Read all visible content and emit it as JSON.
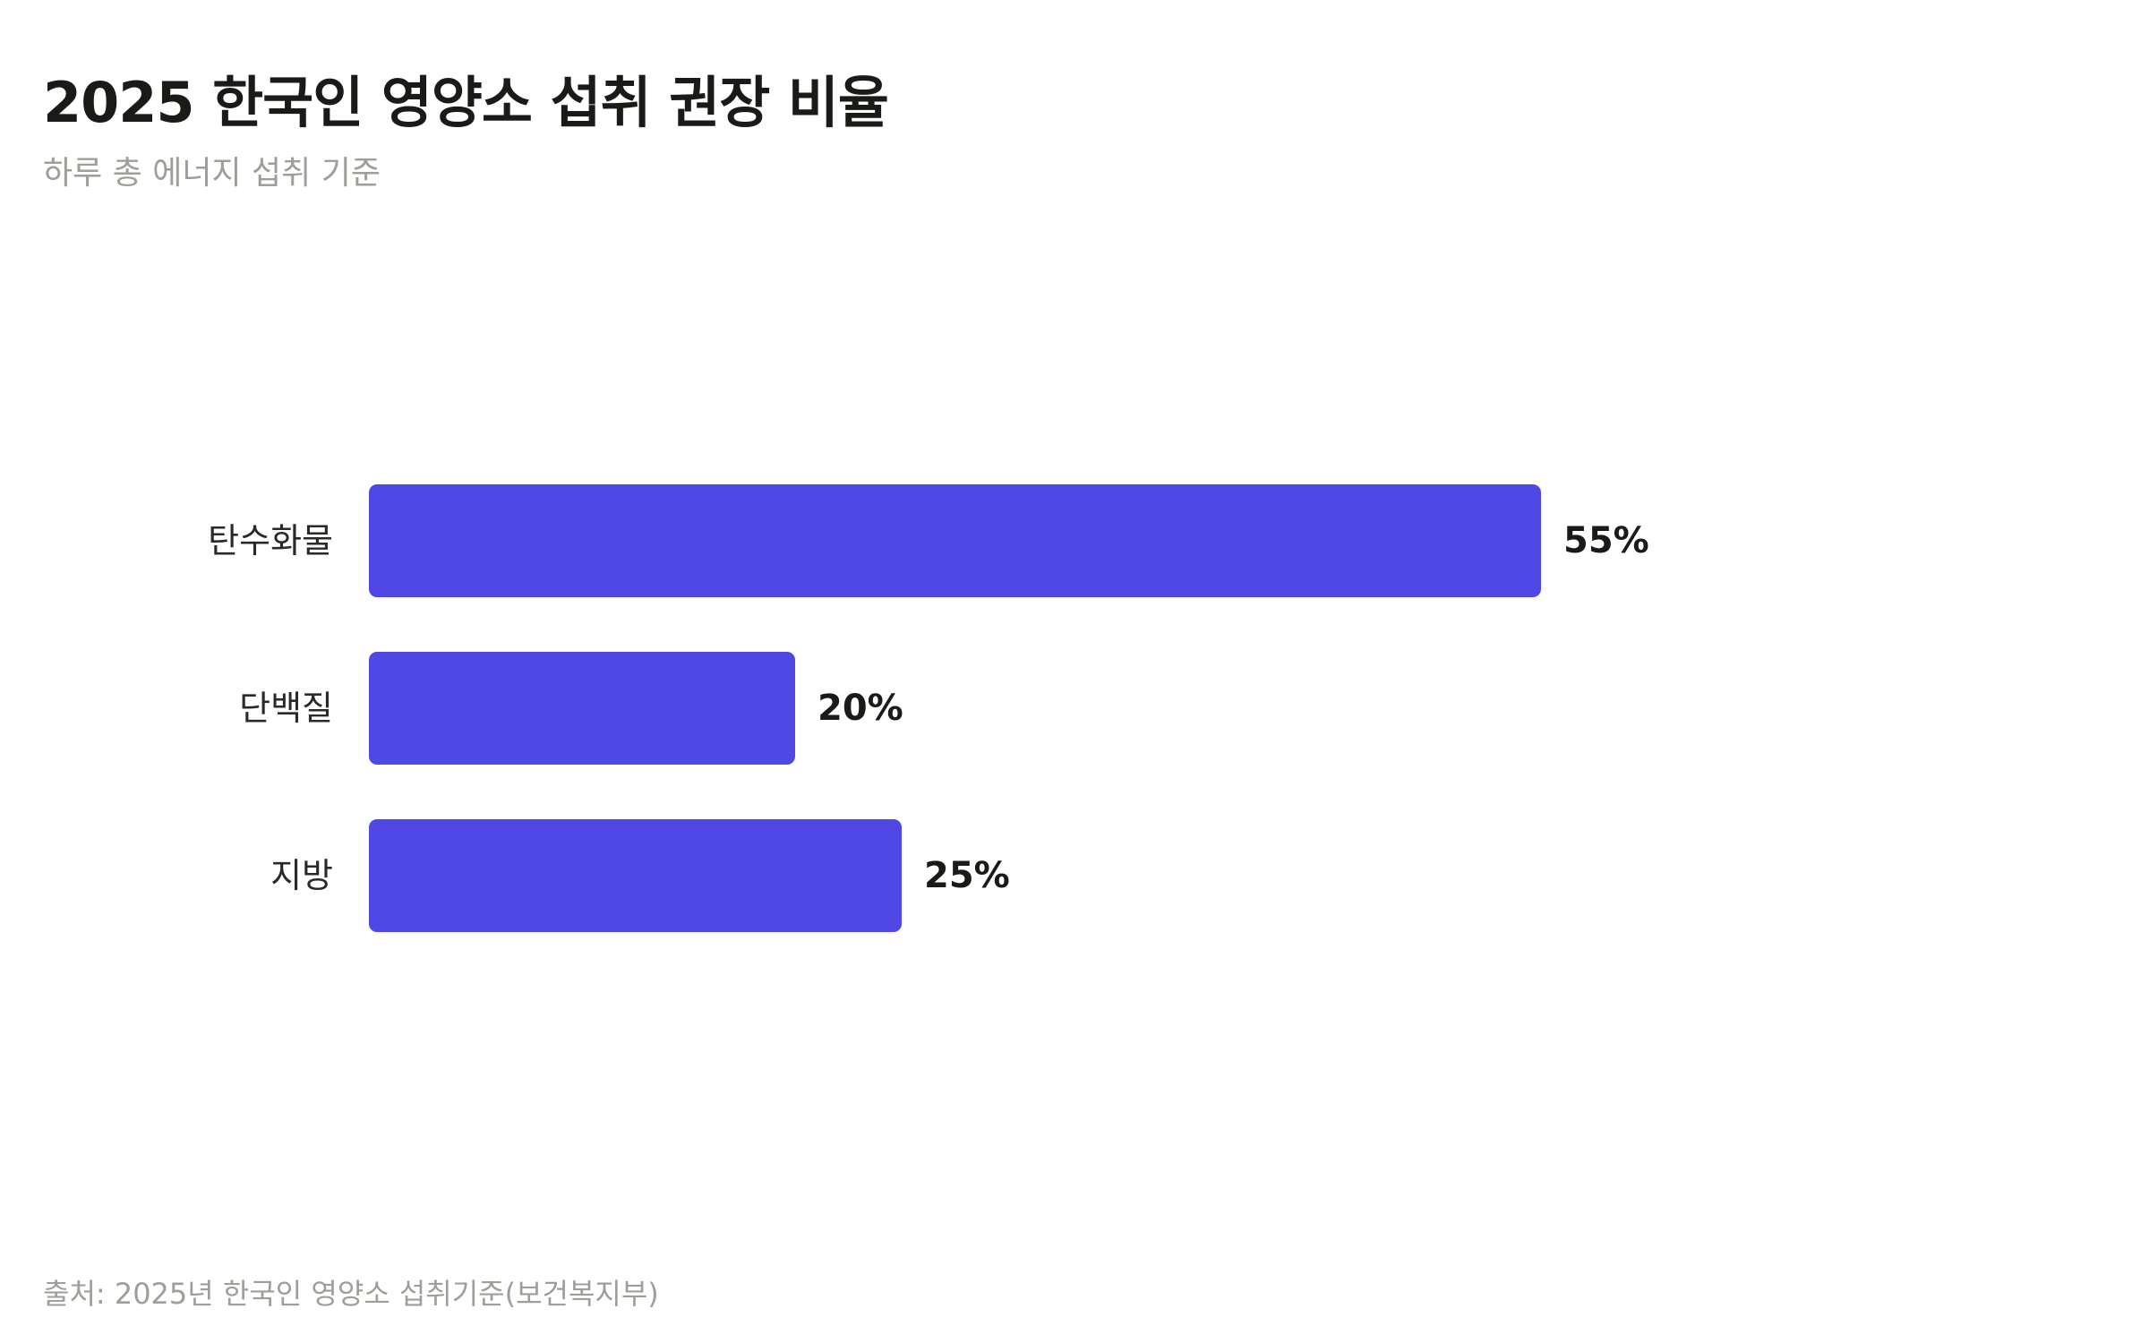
{
  "header": {
    "title": "2025 한국인 영양소 섭취 권장 비율",
    "subtitle": "하루 총 에너지 섭취 기준"
  },
  "footer": {
    "source": "출처: 2025년 한국인 영양소 섭취기준(보건복지부)"
  },
  "colors": {
    "bar": "#5048E5",
    "title": "#1C1A17",
    "muted": "#A19E98"
  },
  "chart_data": {
    "type": "bar",
    "orientation": "horizontal",
    "title": "2025 한국인 영양소 섭취 권장 비율",
    "subtitle": "하루 총 에너지 섭취 기준",
    "categories": [
      "탄수화물",
      "단백질",
      "지방"
    ],
    "values": [
      55,
      20,
      25
    ],
    "value_labels": [
      "55%",
      "20%",
      "25%"
    ],
    "unit": "%",
    "xlim": [
      0,
      100
    ],
    "grid": false,
    "legend": "none",
    "source": "출처: 2025년 한국인 영양소 섭취기준(보건복지부)"
  }
}
